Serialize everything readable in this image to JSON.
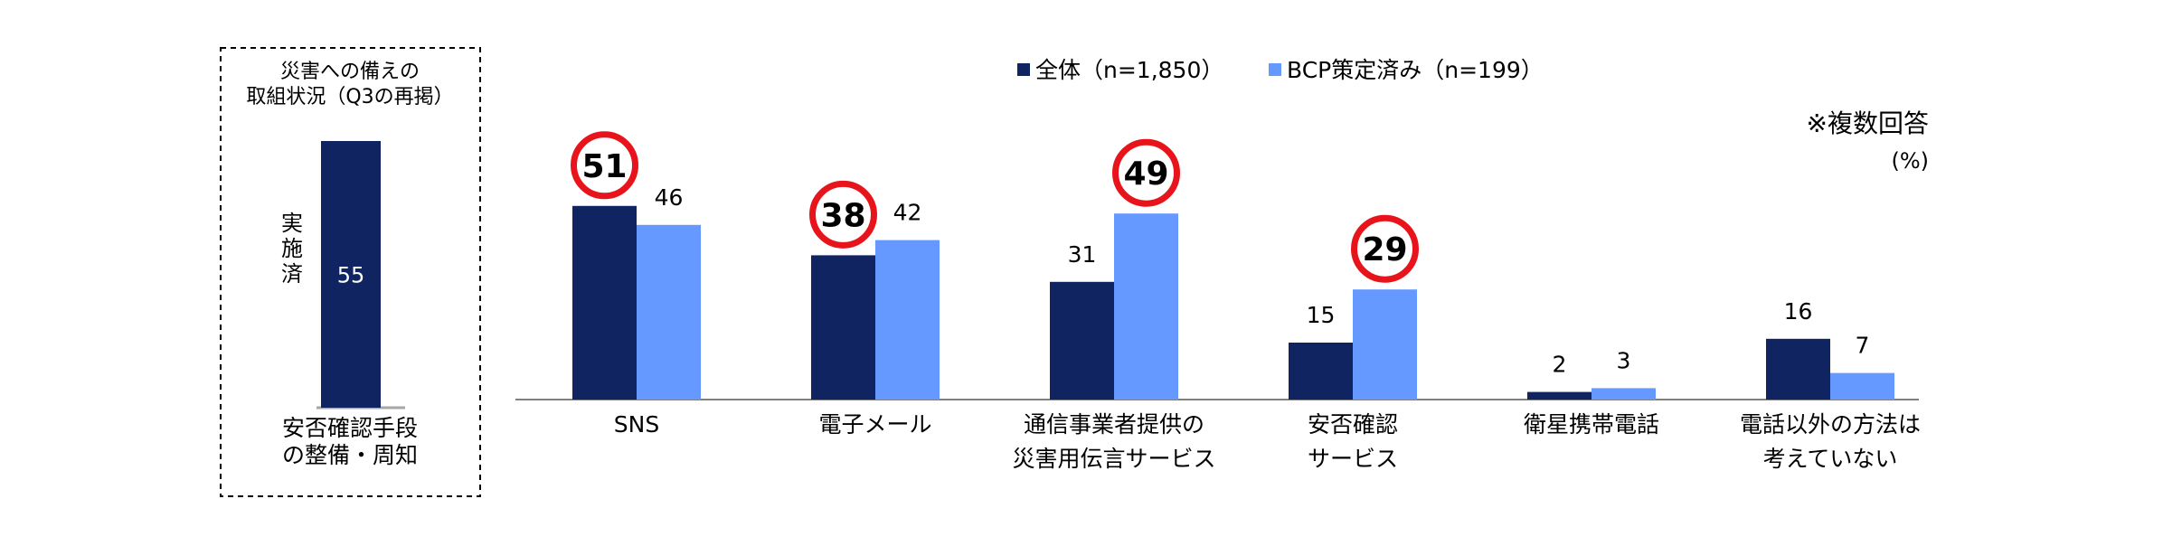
{
  "chart_data": [
    {
      "type": "bar",
      "title": "災害への備えの 取組状況（Q3の再掲）",
      "title_lines": [
        "災害への備えの",
        "取組状況（Q3の再掲）"
      ],
      "categories": [
        "安否確認手段 の整備・周知"
      ],
      "category_lines": [
        [
          "安否確認手段",
          "の整備・周知"
        ]
      ],
      "series": [
        {
          "name": "実施済",
          "values": [
            55
          ]
        }
      ],
      "ylim": [
        0,
        55
      ],
      "border": "dashed",
      "colors": [
        "#0f2461"
      ]
    },
    {
      "type": "bar",
      "note": "※複数回答",
      "unit": "(%)",
      "legend_position": "top",
      "categories": [
        "SNS",
        "電子メール",
        "通信事業者提供の 災害用伝言サービス",
        "安否確認 サービス",
        "衛星携帯電話",
        "電話以外の方法は 考えていない"
      ],
      "category_lines": [
        [
          "SNS"
        ],
        [
          "電子メール"
        ],
        [
          "通信事業者提供の",
          "災害用伝言サービス"
        ],
        [
          "安否確認",
          "サービス"
        ],
        [
          "衛星携帯電話"
        ],
        [
          "電話以外の方法は",
          "考えていない"
        ]
      ],
      "series": [
        {
          "name": "全体（n=1,850）",
          "values": [
            51,
            38,
            31,
            15,
            2,
            16
          ],
          "color": "#0f2461"
        },
        {
          "name": "BCP策定済み（n=199）",
          "values": [
            46,
            42,
            49,
            29,
            3,
            7
          ],
          "color": "#6699ff"
        }
      ],
      "highlighted": [
        {
          "category": "SNS",
          "series": "全体（n=1,850）",
          "value": 51
        },
        {
          "category": "電子メール",
          "series": "全体（n=1,850）",
          "value": 38
        },
        {
          "category": "通信事業者提供の 災害用伝言サービス",
          "series": "BCP策定済み（n=199）",
          "value": 49
        },
        {
          "category": "安否確認 サービス",
          "series": "BCP策定済み（n=199）",
          "value": 29
        }
      ],
      "highlight_color": "#e8141c",
      "ylim": [
        0,
        55
      ],
      "grid": false
    }
  ]
}
